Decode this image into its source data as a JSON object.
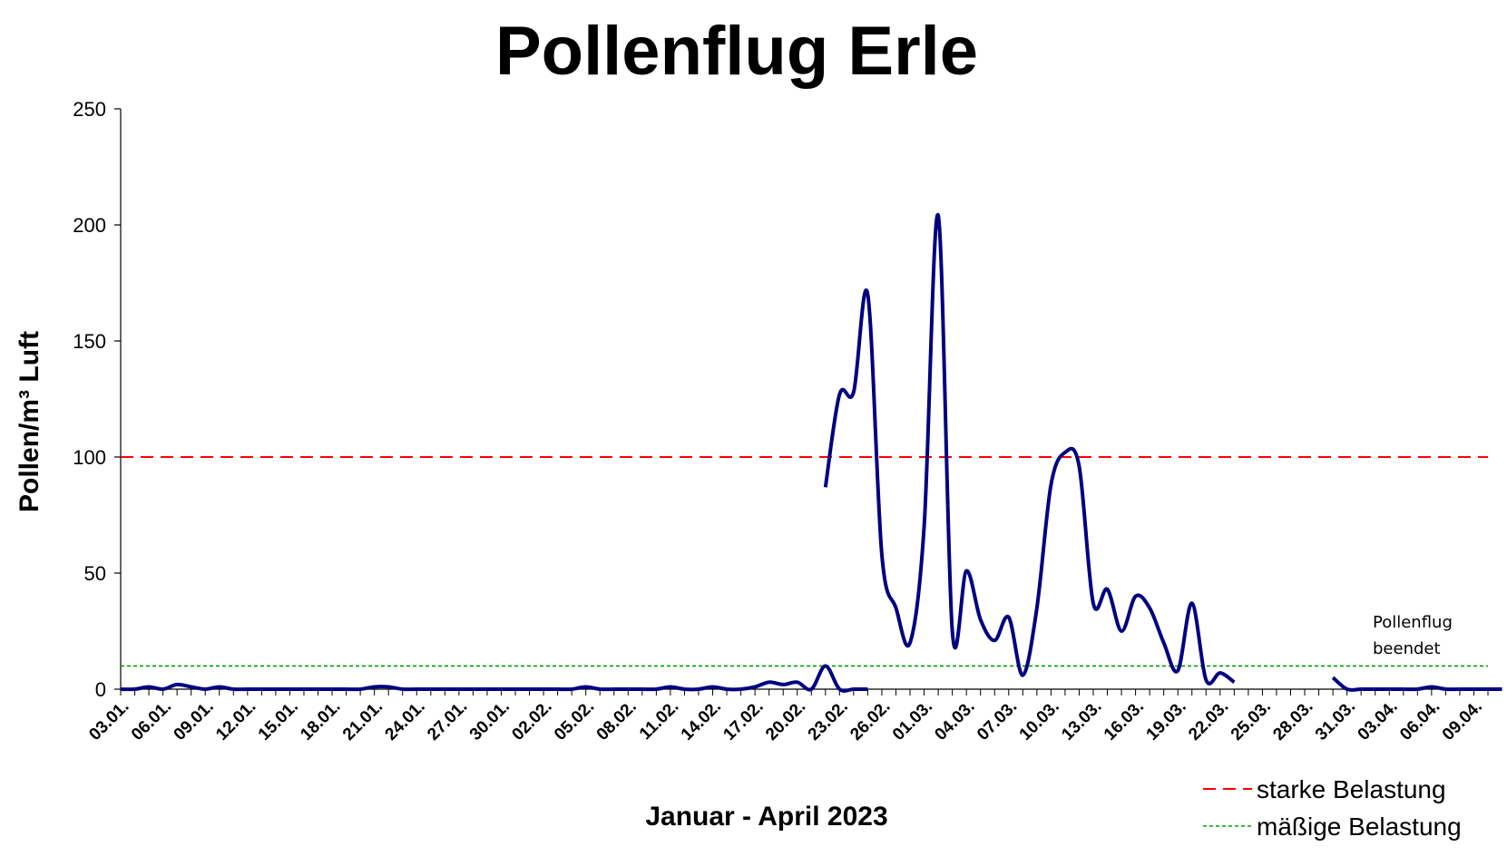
{
  "chart_data": {
    "type": "line",
    "title": "Pollenflug Erle",
    "ylabel": "Pollen/m³ Luft",
    "xlabel": "Januar  - April 2023",
    "ylim": [
      0,
      250
    ],
    "yticks": [
      0,
      50,
      100,
      150,
      200,
      250
    ],
    "xtick_labels": [
      "03.01.",
      "06.01.",
      "09.01.",
      "12.01.",
      "15.01.",
      "18.01.",
      "21.01.",
      "24.01.",
      "27.01.",
      "30.01.",
      "02.02.",
      "05.02.",
      "08.02.",
      "11.02.",
      "14.02.",
      "17.02.",
      "20.02.",
      "23.02.",
      "26.02.",
      "01.03.",
      "04.03.",
      "07.03.",
      "10.03.",
      "13.03.",
      "16.03.",
      "19.03.",
      "22.03.",
      "25.03.",
      "28.03.",
      "31.03.",
      "03.04.",
      "06.04.",
      "09.04."
    ],
    "x_start": "03.01.",
    "x_end": "10.04.",
    "grid": false,
    "series": [
      {
        "name": "Pollenflug Erle",
        "color": "#000080",
        "values": [
          0,
          0,
          1,
          0,
          2,
          1,
          0,
          1,
          0,
          0,
          0,
          0,
          0,
          0,
          0,
          0,
          0,
          0,
          1,
          1,
          0,
          0,
          0,
          0,
          0,
          0,
          0,
          0,
          0,
          0,
          0,
          0,
          0,
          1,
          0,
          0,
          0,
          0,
          0,
          1,
          0,
          0,
          1,
          0,
          0,
          1,
          3,
          2,
          3,
          0,
          10,
          0,
          0,
          0,
          null,
          null,
          null,
          null,
          null,
          null,
          null,
          null,
          null,
          null,
          null,
          null,
          null,
          null,
          null,
          null,
          null,
          null,
          null,
          null,
          null,
          null,
          null,
          null,
          null,
          null,
          null,
          null,
          null,
          null,
          null,
          null,
          null,
          null,
          null,
          null,
          null,
          null,
          null,
          null,
          null,
          null,
          null,
          null
        ],
        "values2": [
          87,
          127,
          128,
          170,
          58,
          35,
          20,
          70,
          204,
          25,
          51,
          30,
          21,
          31,
          6,
          35,
          88,
          102,
          96,
          37,
          43,
          25,
          40,
          35,
          20,
          8,
          37,
          4,
          7,
          3
        ]
      }
    ],
    "thresholds": [
      {
        "label": "starke Belastung",
        "value": 100,
        "color": "#ff0000",
        "style": "dashed"
      },
      {
        "label": "mäßige Belastung",
        "value": 10,
        "color": "#00a000",
        "style": "dotted"
      }
    ],
    "annotation": {
      "line1": "Pollenflug",
      "line2": "beendet"
    },
    "tail_values": [
      5,
      0,
      0,
      0,
      0,
      0,
      0,
      1,
      0,
      0,
      0,
      0,
      0
    ]
  }
}
